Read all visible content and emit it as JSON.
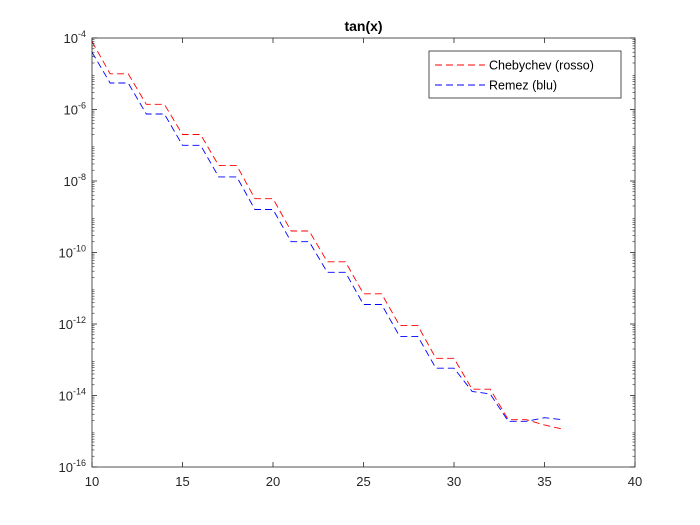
{
  "chart_data": {
    "type": "line",
    "title": "tan(x)",
    "xlabel": "",
    "ylabel": "",
    "xlim": [
      10,
      40
    ],
    "ylim_log10": [
      -16,
      -4
    ],
    "yscale": "log",
    "grid": false,
    "legend_position": "top-right",
    "x_ticks": [
      "10",
      "15",
      "20",
      "25",
      "30",
      "35",
      "40"
    ],
    "y_ticks": [
      {
        "base": "10",
        "exp": "-4"
      },
      {
        "base": "10",
        "exp": "-6"
      },
      {
        "base": "10",
        "exp": "-8"
      },
      {
        "base": "10",
        "exp": "-10"
      },
      {
        "base": "10",
        "exp": "-12"
      },
      {
        "base": "10",
        "exp": "-14"
      },
      {
        "base": "10",
        "exp": "-16"
      }
    ],
    "series": [
      {
        "name": "Chebychev (rosso)",
        "color": "#ff0000",
        "x": [
          10,
          11,
          12,
          13,
          14,
          15,
          16,
          17,
          18,
          19,
          20,
          21,
          22,
          23,
          24,
          25,
          26,
          27,
          28,
          29,
          30,
          31,
          32,
          33,
          34,
          35,
          36
        ],
        "y": [
          8e-05,
          1e-05,
          1e-05,
          1.4e-06,
          1.4e-06,
          2e-07,
          2e-07,
          2.7e-08,
          2.7e-08,
          3.2e-09,
          3.2e-09,
          4e-10,
          4e-10,
          5.5e-11,
          5.5e-11,
          7e-12,
          7e-12,
          9e-13,
          9e-13,
          1.1e-13,
          1.1e-13,
          1.5e-14,
          1.5e-14,
          2.1e-15,
          2.1e-15,
          1.5e-15,
          1.15e-15
        ]
      },
      {
        "name": "Remez (blu)",
        "color": "#0000ff",
        "x": [
          10,
          11,
          12,
          13,
          14,
          15,
          16,
          17,
          18,
          19,
          20,
          21,
          22,
          23,
          24,
          25,
          26,
          27,
          28,
          29,
          30,
          31,
          32,
          33,
          34,
          35,
          36
        ],
        "y": [
          4e-05,
          5.5e-06,
          5.5e-06,
          7.5e-07,
          7.5e-07,
          1e-07,
          1e-07,
          1.3e-08,
          1.3e-08,
          1.6e-09,
          1.6e-09,
          2e-10,
          2e-10,
          2.8e-11,
          2.8e-11,
          3.5e-12,
          3.5e-12,
          4.5e-13,
          4.5e-13,
          5.8e-14,
          5.8e-14,
          1.3e-14,
          1.1e-14,
          1.9e-15,
          1.9e-15,
          2.4e-15,
          2.1e-15
        ]
      }
    ]
  }
}
